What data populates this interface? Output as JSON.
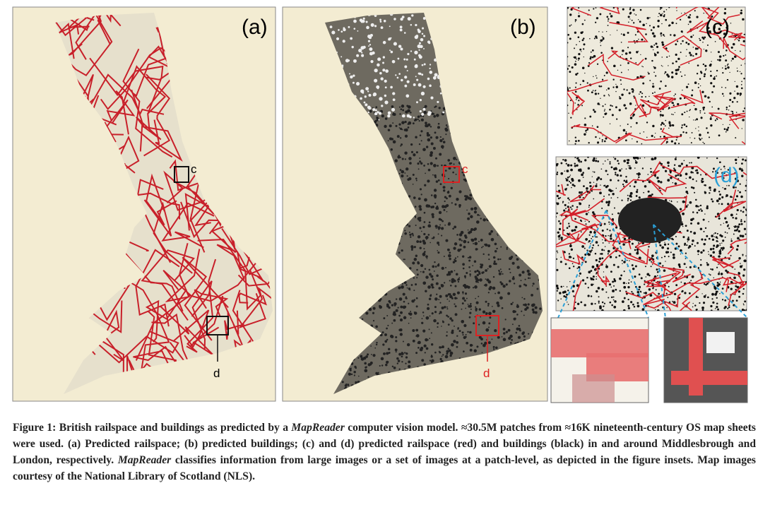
{
  "figure": {
    "panels": {
      "a": "(a)",
      "b": "(b)",
      "c": "(c)",
      "d": "(d)"
    },
    "insets": {
      "a_c": "c",
      "a_d": "d",
      "b_c": "c",
      "b_d": "d"
    },
    "caption": [
      {
        "text": "Figure 1: British railspace and buildings as predicted by a ",
        "italic": false
      },
      {
        "text": "MapReader",
        "italic": true
      },
      {
        "text": " computer vision model. ≈30.5M patches from ≈16K nineteenth-century OS map sheets were used. (a) Predicted railspace; (b) predicted buildings; (c) and (d) predicted railspace (red) and buildings (black) in and around Middlesbrough and London, respectively. ",
        "italic": false
      },
      {
        "text": "MapReader",
        "italic": true
      },
      {
        "text": " classifies information from large images or a set of images at a patch-level, as depicted in the figure insets. Map images courtesy of the National Library of Scotland (NLS).",
        "italic": false
      }
    ]
  }
}
